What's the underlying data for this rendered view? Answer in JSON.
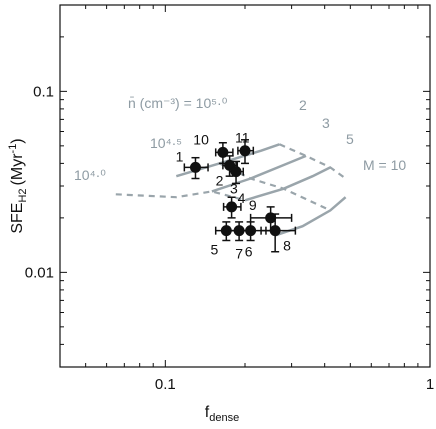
{
  "colors": {
    "model": "#9aa5ab",
    "points": "#111111",
    "frame": "#111111"
  },
  "chart_data": {
    "type": "scatter",
    "xlabel": "f",
    "xlabel_sub": "dense",
    "ylabel": "SFE",
    "ylabel_sub": "H2",
    "ylabel_unit": "(Myr",
    "ylabel_unit_sup": "-1",
    "ylabel_unit_end": ")",
    "xscale": "log",
    "yscale": "log",
    "xlim": [
      0.04,
      1.0
    ],
    "ylim": [
      0.003,
      0.3
    ],
    "xticks": [
      {
        "value": 0.1,
        "label": "0.1"
      },
      {
        "value": 1,
        "label": "1"
      }
    ],
    "yticks": [
      {
        "value": 0.01,
        "label": "0.01"
      },
      {
        "value": 0.1,
        "label": "0.1"
      }
    ],
    "points": [
      {
        "label": "1",
        "x": 0.13,
        "y": 0.038,
        "xerr": [
          0.012,
          0.015
        ],
        "yerr": [
          0.005,
          0.005
        ]
      },
      {
        "label": "2",
        "x": 0.175,
        "y": 0.039,
        "xerr": [
          0.01,
          0.012
        ],
        "yerr": [
          0.005,
          0.005
        ]
      },
      {
        "label": "3",
        "x": 0.185,
        "y": 0.036,
        "xerr": [
          0.01,
          0.012
        ],
        "yerr": [
          0.005,
          0.005
        ]
      },
      {
        "label": "10",
        "x": 0.165,
        "y": 0.046,
        "xerr": [
          0.01,
          0.015
        ],
        "yerr": [
          0.006,
          0.006
        ]
      },
      {
        "label": "11",
        "x": 0.2,
        "y": 0.047,
        "xerr": [
          0.012,
          0.015
        ],
        "yerr": [
          0.007,
          0.007
        ]
      },
      {
        "label": "4",
        "x": 0.178,
        "y": 0.023,
        "xerr": [
          0.012,
          0.015
        ],
        "yerr": [
          0.003,
          0.003
        ]
      },
      {
        "label": "9",
        "x": 0.25,
        "y": 0.02,
        "xerr": [
          0.04,
          0.05
        ],
        "yerr": [
          0.003,
          0.003
        ]
      },
      {
        "label": "5",
        "x": 0.17,
        "y": 0.017,
        "xerr": [
          0.015,
          0.02
        ],
        "yerr": [
          0.002,
          0.002
        ]
      },
      {
        "label": "7",
        "x": 0.19,
        "y": 0.017,
        "xerr": [
          0.015,
          0.02
        ],
        "yerr": [
          0.002,
          0.002
        ]
      },
      {
        "label": "6",
        "x": 0.21,
        "y": 0.017,
        "xerr": [
          0.02,
          0.03
        ],
        "yerr": [
          0.002,
          0.002
        ]
      },
      {
        "label": "8",
        "x": 0.26,
        "y": 0.017,
        "xerr": [
          0.03,
          0.05
        ],
        "yerr": [
          0.004,
          0.004
        ]
      }
    ],
    "model_curves_M": [
      {
        "label": "2",
        "points": [
          [
            0.11,
            0.034
          ],
          [
            0.16,
            0.04
          ],
          [
            0.23,
            0.047
          ],
          [
            0.27,
            0.051
          ]
        ]
      },
      {
        "label": "3",
        "points": [
          [
            0.15,
            0.028
          ],
          [
            0.21,
            0.033
          ],
          [
            0.29,
            0.04
          ],
          [
            0.34,
            0.044
          ]
        ]
      },
      {
        "label": "5",
        "points": [
          [
            0.2,
            0.025
          ],
          [
            0.28,
            0.029
          ],
          [
            0.36,
            0.034
          ],
          [
            0.42,
            0.038
          ]
        ]
      },
      {
        "label": "10",
        "points": [
          [
            0.26,
            0.016
          ],
          [
            0.33,
            0.018
          ],
          [
            0.42,
            0.022
          ],
          [
            0.48,
            0.026
          ]
        ]
      }
    ],
    "model_curves_n_dashed": [
      {
        "label": "10^5.0",
        "points": [
          [
            0.27,
            0.051
          ],
          [
            0.34,
            0.044
          ],
          [
            0.42,
            0.038
          ],
          [
            0.48,
            0.033
          ]
        ]
      },
      {
        "label": "10^4.5",
        "points": [
          [
            0.16,
            0.04
          ],
          [
            0.21,
            0.033
          ],
          [
            0.28,
            0.029
          ],
          [
            0.42,
            0.022
          ]
        ]
      },
      {
        "label": "10^4.0",
        "points": [
          [
            0.065,
            0.027
          ],
          [
            0.11,
            0.026
          ],
          [
            0.15,
            0.028
          ],
          [
            0.2,
            0.025
          ]
        ]
      }
    ],
    "model_labels": [
      {
        "text": "n̄ (cm⁻³) = 10⁵·⁰"
      },
      {
        "text": "10⁴·⁵"
      },
      {
        "text": "10⁴·⁰"
      },
      {
        "text": "2"
      },
      {
        "text": "3"
      },
      {
        "text": "5"
      },
      {
        "text": "M = 10"
      }
    ]
  }
}
